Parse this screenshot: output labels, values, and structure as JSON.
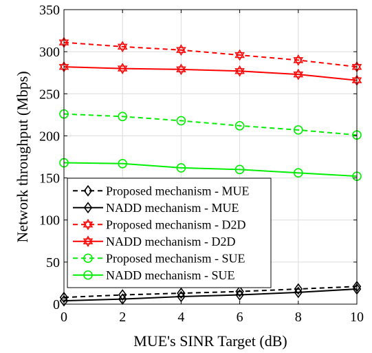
{
  "chart_data": {
    "type": "line",
    "title": "",
    "xlabel": "MUE's SINR Target (dB)",
    "ylabel": "Network throughput (Mbps)",
    "x": [
      0,
      2,
      4,
      6,
      8,
      10
    ],
    "xlim": [
      0,
      10
    ],
    "ylim": [
      0,
      350
    ],
    "xticks": [
      "0",
      "2",
      "4",
      "6",
      "8",
      "10"
    ],
    "yticks": [
      "0",
      "50",
      "100",
      "150",
      "200",
      "250",
      "300",
      "350"
    ],
    "grid": true,
    "legend_position": "center-left",
    "series": [
      {
        "name": "Proposed mechanism - MUE",
        "values": [
          8,
          11,
          13,
          15,
          18,
          21
        ],
        "color": "#000000",
        "dash": true,
        "marker": "diamond"
      },
      {
        "name": "NADD mechanism - MUE",
        "values": [
          4,
          6,
          9,
          11,
          14,
          18
        ],
        "color": "#000000",
        "dash": false,
        "marker": "diamond"
      },
      {
        "name": "Proposed mechanism - D2D",
        "values": [
          311,
          306,
          302,
          296,
          290,
          282
        ],
        "color": "#ff0000",
        "dash": true,
        "marker": "hexagram"
      },
      {
        "name": "NADD mechanism - D2D",
        "values": [
          282,
          280,
          279,
          277,
          273,
          266
        ],
        "color": "#ff0000",
        "dash": false,
        "marker": "hexagram"
      },
      {
        "name": "Proposed mechanism - SUE",
        "values": [
          226,
          223,
          218,
          212,
          207,
          201
        ],
        "color": "#00ee00",
        "dash": true,
        "marker": "circle"
      },
      {
        "name": "NADD mechanism - SUE",
        "values": [
          168,
          167,
          162,
          160,
          156,
          152
        ],
        "color": "#00ee00",
        "dash": false,
        "marker": "circle"
      }
    ]
  }
}
